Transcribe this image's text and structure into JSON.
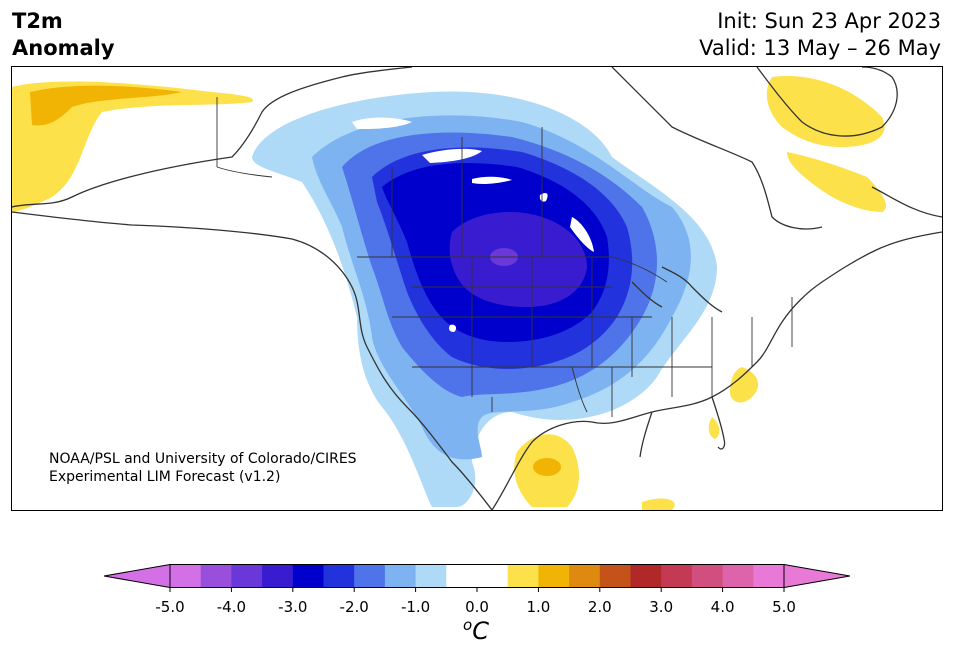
{
  "header": {
    "title_line1": "T2m",
    "title_line2": "Anomaly",
    "init": "Init: Sun 23 Apr 2023",
    "valid": "Valid: 13 May – 26 May"
  },
  "credit": {
    "line1": "NOAA/PSL and University of Colorado/CIRES",
    "line2": "Experimental LIM Forecast (v1.2)"
  },
  "colorbar": {
    "unit_base": "C",
    "unit_sup": "o",
    "ticks": [
      "-5.0",
      "-4.0",
      "-3.0",
      "-2.0",
      "-1.0",
      "0.0",
      "1.0",
      "2.0",
      "3.0",
      "4.0",
      "5.0"
    ],
    "colors": [
      "#d470e6",
      "#9a4fdc",
      "#6a37d8",
      "#3a1cd0",
      "#0000cc",
      "#2233dd",
      "#4f73e8",
      "#7eb3f2",
      "#aedaf8",
      "#ffffff",
      "#ffffff",
      "#fde14a",
      "#f2b404",
      "#de8a10",
      "#c4531a",
      "#b02828",
      "#c43a54",
      "#d04f7e",
      "#dd64aa",
      "#e879d6"
    ],
    "over_color": "#e879d6",
    "under_color": "#d470e6"
  },
  "map": {
    "colors": {
      "land_line": "#333333",
      "cold1": "#aedaf8",
      "cold2": "#7eb3f2",
      "cold3": "#4f73e8",
      "cold4": "#2233dd",
      "cold5": "#0000cc",
      "cold6": "#3a1cd0",
      "cold7": "#6a37d8",
      "warm1": "#fde14a",
      "warm2": "#f2b404"
    }
  }
}
